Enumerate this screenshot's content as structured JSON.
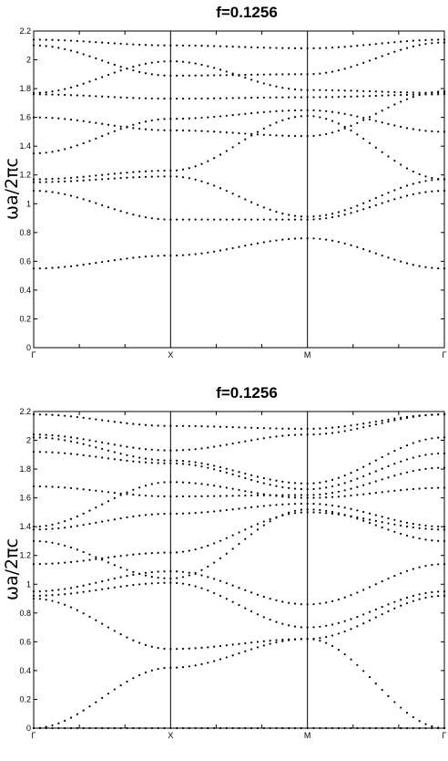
{
  "chart_data": [
    {
      "type": "scatter",
      "title": "f=0.1256",
      "ylabel": "ωa/2πc",
      "xlabel": "",
      "ylim": [
        0,
        2.2
      ],
      "yticks": [
        "0",
        "0.2",
        "0.4",
        "0.6",
        "0.8",
        "1",
        "1.2",
        "1.4",
        "1.6",
        "1.8",
        "2",
        "2.2"
      ],
      "ytick_values": [
        0,
        0.2,
        0.4,
        0.6,
        0.8,
        1,
        1.2,
        1.4,
        1.6,
        1.8,
        2,
        2.2
      ],
      "xticks": [
        "Γ",
        "X",
        "M",
        "Γ"
      ],
      "xtick_positions": [
        0,
        1,
        2,
        3
      ],
      "grid": false,
      "bands": [
        [
          0.55,
          0.64,
          0.76,
          0.55
        ],
        [
          1.09,
          0.89,
          0.89,
          1.09
        ],
        [
          1.15,
          1.19,
          0.91,
          1.17
        ],
        [
          1.17,
          1.23,
          1.61,
          1.17
        ],
        [
          1.35,
          1.59,
          1.65,
          1.5
        ],
        [
          1.6,
          1.51,
          1.47,
          1.78
        ],
        [
          1.76,
          1.73,
          1.74,
          1.76
        ],
        [
          1.77,
          1.99,
          1.79,
          1.77
        ],
        [
          2.1,
          1.89,
          1.9,
          2.12
        ],
        [
          2.14,
          2.1,
          2.08,
          2.14
        ]
      ]
    },
    {
      "type": "scatter",
      "title": "f=0.1256",
      "ylabel": "ωa/2πc",
      "xlabel": "",
      "ylim": [
        0,
        2.2
      ],
      "yticks": [
        "0",
        "0.2",
        "0.4",
        "0.6",
        "0.8",
        "1",
        "1.2",
        "1.4",
        "1.6",
        "1.8",
        "2",
        "2.2"
      ],
      "ytick_values": [
        0,
        0.2,
        0.4,
        0.6,
        0.8,
        1,
        1.2,
        1.4,
        1.6,
        1.8,
        2,
        2.2
      ],
      "xticks": [
        "Γ",
        "X",
        "M",
        "Γ"
      ],
      "xtick_positions": [
        0,
        1,
        2,
        3
      ],
      "grid": false,
      "bands": [
        [
          0.0,
          0.0,
          0.0,
          0.0
        ],
        [
          0.0,
          0.42,
          0.62,
          0.0
        ],
        [
          0.9,
          0.55,
          0.62,
          0.92
        ],
        [
          0.92,
          1.01,
          0.7,
          0.95
        ],
        [
          0.95,
          1.09,
          0.86,
          1.14
        ],
        [
          1.14,
          1.22,
          1.5,
          1.38
        ],
        [
          1.3,
          1.04,
          1.52,
          1.3
        ],
        [
          1.38,
          1.49,
          1.56,
          1.4
        ],
        [
          1.4,
          1.71,
          1.6,
          1.67
        ],
        [
          1.68,
          1.61,
          1.62,
          1.81
        ],
        [
          1.92,
          1.84,
          1.66,
          1.91
        ],
        [
          2.02,
          1.86,
          1.7,
          2.02
        ],
        [
          2.04,
          1.93,
          2.04,
          2.18
        ],
        [
          2.18,
          2.1,
          2.08,
          2.18
        ]
      ]
    }
  ]
}
